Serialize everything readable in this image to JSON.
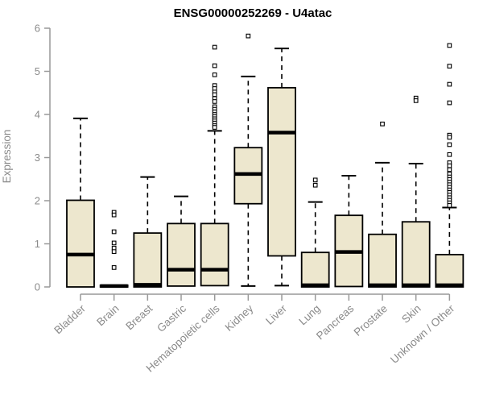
{
  "colors": {
    "box_fill": "#EDE7CE",
    "box_stroke": "#000000",
    "median": "#000000",
    "whisker": "#000000",
    "outlier_fill": "#FFFFFF",
    "outlier_stroke": "#000000",
    "axis": "#999999",
    "tick_label": "#8A8A8A",
    "title_color": "#000000"
  },
  "chart_data": {
    "type": "boxplot",
    "title": "ENSG00000252269 - U4atac",
    "ylabel": "Expression",
    "xlabel": "",
    "ylim": [
      0,
      6
    ],
    "yticks": [
      0,
      1,
      2,
      3,
      4,
      5,
      6
    ],
    "grid": false,
    "legend": "none",
    "categories": [
      "Bladder",
      "Brain",
      "Breast",
      "Gastric",
      "Hematopoietic cells",
      "Kidney",
      "Liver",
      "Lung",
      "Pancreas",
      "Prostate",
      "Skin",
      "Unknown / Other"
    ],
    "series": [
      {
        "name": "Bladder",
        "whisker_low": 0,
        "q1": 0,
        "median": 0.75,
        "q3": 2.01,
        "whisker_high": 3.91,
        "outliers": []
      },
      {
        "name": "Brain",
        "whisker_low": 0,
        "q1": 0,
        "median": 0.02,
        "q3": 0.04,
        "whisker_high": 0.04,
        "outliers": [
          1.73,
          1.67,
          1.28,
          1.02,
          0.9,
          0.82,
          0.45
        ]
      },
      {
        "name": "Breast",
        "whisker_low": 0,
        "q1": 0,
        "median": 0.05,
        "q3": 1.25,
        "whisker_high": 2.55,
        "outliers": []
      },
      {
        "name": "Gastric",
        "whisker_low": 0.02,
        "q1": 0.02,
        "median": 0.4,
        "q3": 1.47,
        "whisker_high": 2.1,
        "outliers": []
      },
      {
        "name": "Hematopoietic cells",
        "whisker_low": 0.03,
        "q1": 0.03,
        "median": 0.4,
        "q3": 1.47,
        "whisker_high": 3.62,
        "outliers": [
          5.56,
          5.13,
          4.92,
          4.67,
          4.6,
          4.52,
          4.46,
          4.37,
          4.3,
          4.18,
          4.12,
          4.06,
          4.0,
          3.95,
          3.9,
          3.85,
          3.8,
          3.74,
          3.7
        ]
      },
      {
        "name": "Kidney",
        "whisker_low": 0.02,
        "q1": 1.93,
        "median": 2.62,
        "q3": 3.23,
        "whisker_high": 4.88,
        "outliers": [
          5.82
        ]
      },
      {
        "name": "Liver",
        "whisker_low": 0.03,
        "q1": 0.72,
        "median": 3.58,
        "q3": 4.62,
        "whisker_high": 5.53,
        "outliers": []
      },
      {
        "name": "Lung",
        "whisker_low": 0,
        "q1": 0,
        "median": 0.04,
        "q3": 0.8,
        "whisker_high": 1.97,
        "outliers": [
          2.48,
          2.36
        ]
      },
      {
        "name": "Pancreas",
        "whisker_low": 0.01,
        "q1": 0.01,
        "median": 0.81,
        "q3": 1.66,
        "whisker_high": 2.58,
        "outliers": []
      },
      {
        "name": "Prostate",
        "whisker_low": 0,
        "q1": 0,
        "median": 0.04,
        "q3": 1.22,
        "whisker_high": 2.88,
        "outliers": [
          3.78
        ]
      },
      {
        "name": "Skin",
        "whisker_low": 0,
        "q1": 0,
        "median": 0.04,
        "q3": 1.51,
        "whisker_high": 2.86,
        "outliers": [
          4.38,
          4.32
        ]
      },
      {
        "name": "Unknown / Other",
        "whisker_low": 0,
        "q1": 0,
        "median": 0.04,
        "q3": 0.75,
        "whisker_high": 1.84,
        "outliers": [
          5.6,
          5.12,
          4.7,
          4.27,
          3.52,
          3.47,
          3.3,
          3.07,
          2.88,
          2.81,
          2.72,
          2.62,
          2.55,
          2.49,
          2.43,
          2.37,
          2.31,
          2.25,
          2.19,
          2.13,
          2.07,
          2.01,
          1.95,
          1.89
        ]
      }
    ]
  }
}
